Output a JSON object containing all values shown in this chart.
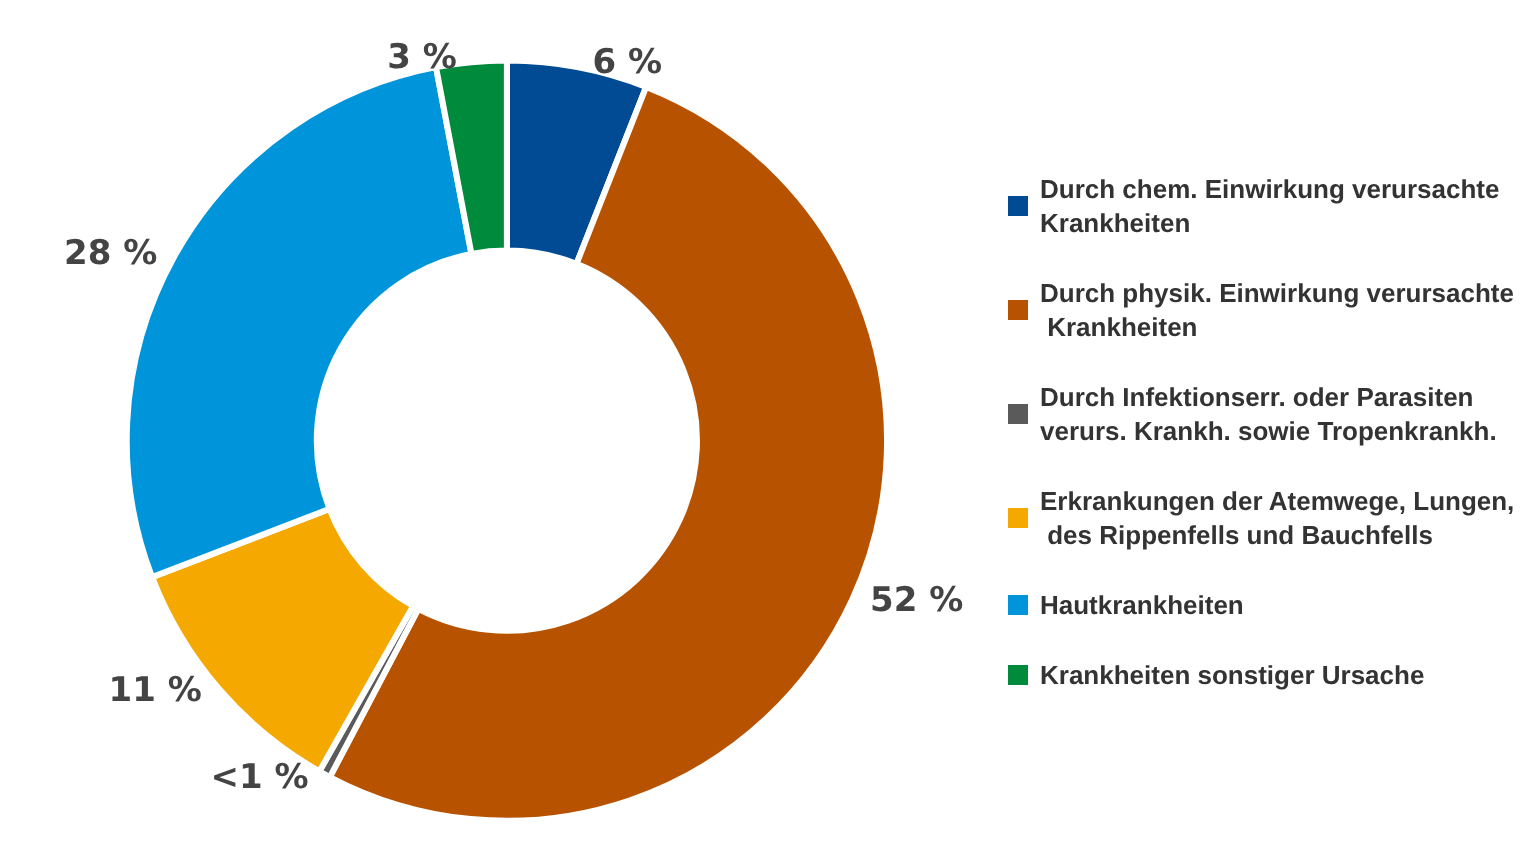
{
  "chart_data": {
    "type": "donut",
    "categories": [
      "Durch chem. Einwirkung verursachte Krankheiten",
      "Durch physik. Einwirkung verursachte Krankheiten",
      "Durch Infektionserr. oder Parasiten verurs. Krankh. sowie Tropenkrankh.",
      "Erkrankungen der Atemwege, Lungen, des Rippenfells und Bauchfells",
      "Hautkrankheiten",
      "Krankheiten sonstiger Ursache"
    ],
    "values": [
      6,
      52,
      0.5,
      11,
      28,
      3
    ],
    "colors": [
      "#004b93",
      "#b75300",
      "#5a5a5a",
      "#f5a800",
      "#0095db",
      "#008a3c"
    ],
    "value_labels": [
      "6 %",
      "52 %",
      "<1 %",
      "11 %",
      "28 %",
      "3 %"
    ],
    "legend": "right"
  }
}
